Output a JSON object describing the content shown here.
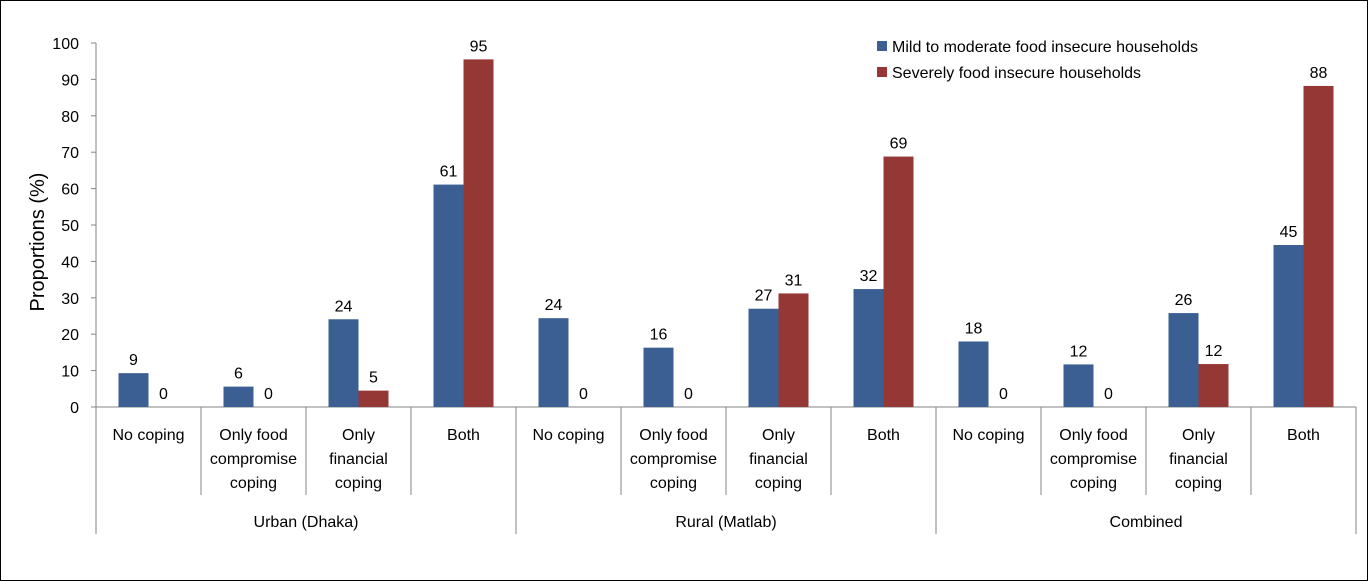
{
  "chart_data": {
    "type": "bar",
    "ylabel": "Proportions (%)",
    "ylim": [
      0,
      100
    ],
    "yticks": [
      0,
      10,
      20,
      30,
      40,
      50,
      60,
      70,
      80,
      90,
      100
    ],
    "grid": false,
    "legend_position": "top-right",
    "groups": [
      "Urban (Dhaka)",
      "Rural (Matlab)",
      "Combined"
    ],
    "categories": [
      {
        "group": "Urban (Dhaka)",
        "label": [
          "No coping"
        ]
      },
      {
        "group": "Urban (Dhaka)",
        "label": [
          "Only food",
          "compromise",
          "coping"
        ]
      },
      {
        "group": "Urban (Dhaka)",
        "label": [
          "Only",
          "financial",
          "coping"
        ]
      },
      {
        "group": "Urban (Dhaka)",
        "label": [
          "Both"
        ]
      },
      {
        "group": "Rural (Matlab)",
        "label": [
          "No coping"
        ]
      },
      {
        "group": "Rural (Matlab)",
        "label": [
          "Only food",
          "compromise",
          "coping"
        ]
      },
      {
        "group": "Rural (Matlab)",
        "label": [
          "Only",
          "financial",
          "coping"
        ]
      },
      {
        "group": "Rural (Matlab)",
        "label": [
          "Both"
        ]
      },
      {
        "group": "Combined",
        "label": [
          "No coping"
        ]
      },
      {
        "group": "Combined",
        "label": [
          "Only food",
          "compromise",
          "coping"
        ]
      },
      {
        "group": "Combined",
        "label": [
          "Only",
          "financial",
          "coping"
        ]
      },
      {
        "group": "Combined",
        "label": [
          "Both"
        ]
      }
    ],
    "series": [
      {
        "name": "Mild to moderate food insecure households",
        "color": "#3B5F93",
        "values": [
          9.3,
          5.6,
          24.1,
          61.1,
          24.4,
          16.3,
          27.0,
          32.4,
          18.0,
          11.7,
          25.8,
          44.5
        ],
        "labels": [
          "9",
          "6",
          "24",
          "61",
          "24",
          "16",
          "27",
          "32",
          "18",
          "12",
          "26",
          "45"
        ]
      },
      {
        "name": "Severely food insecure households",
        "color": "#953735",
        "values": [
          0,
          0,
          4.5,
          95.5,
          0,
          0,
          31.2,
          68.8,
          0,
          0,
          11.8,
          88.2
        ],
        "labels": [
          "0",
          "0",
          "5",
          "95",
          "0",
          "0",
          "31",
          "69",
          "0",
          "0",
          "12",
          "88"
        ]
      }
    ]
  }
}
